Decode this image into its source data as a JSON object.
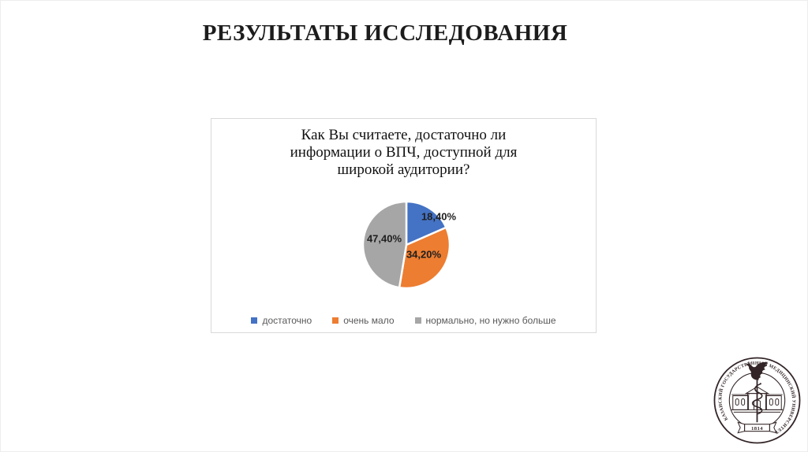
{
  "slide": {
    "title": "РЕЗУЛЬТАТЫ ИССЛЕДОВАНИЯ"
  },
  "chart": {
    "title_lines": [
      "Как Вы считаете, достаточно ли",
      "информации о ВПЧ, доступной для",
      "широкой аудитории?"
    ],
    "legend": [
      {
        "label": "достаточно",
        "color": "#4472C4"
      },
      {
        "label": "очень мало",
        "color": "#ED7D31"
      },
      {
        "label": "нормально, но нужно больше",
        "color": "#A6A6A6"
      }
    ]
  },
  "chart_data": {
    "type": "pie",
    "title": "Как Вы считаете, достаточно ли информации о ВПЧ, доступной для широкой аудитории?",
    "categories": [
      "достаточно",
      "очень мало",
      "нормально, но нужно больше"
    ],
    "values": [
      18.4,
      34.2,
      47.4
    ],
    "labels": [
      "18,40%",
      "34,20%",
      "47,40%"
    ],
    "colors": [
      "#4472C4",
      "#ED7D31",
      "#A6A6A6"
    ],
    "start_angle_deg": 0,
    "direction": "clockwise",
    "legend_position": "bottom"
  },
  "logo": {
    "ring_text": "КАЗАНСКИЙ ГОСУДАРСТВЕННЫЙ МЕДИЦИНСКИЙ УНИВЕРСИТЕТ",
    "year": "1814",
    "color": "#332527"
  }
}
